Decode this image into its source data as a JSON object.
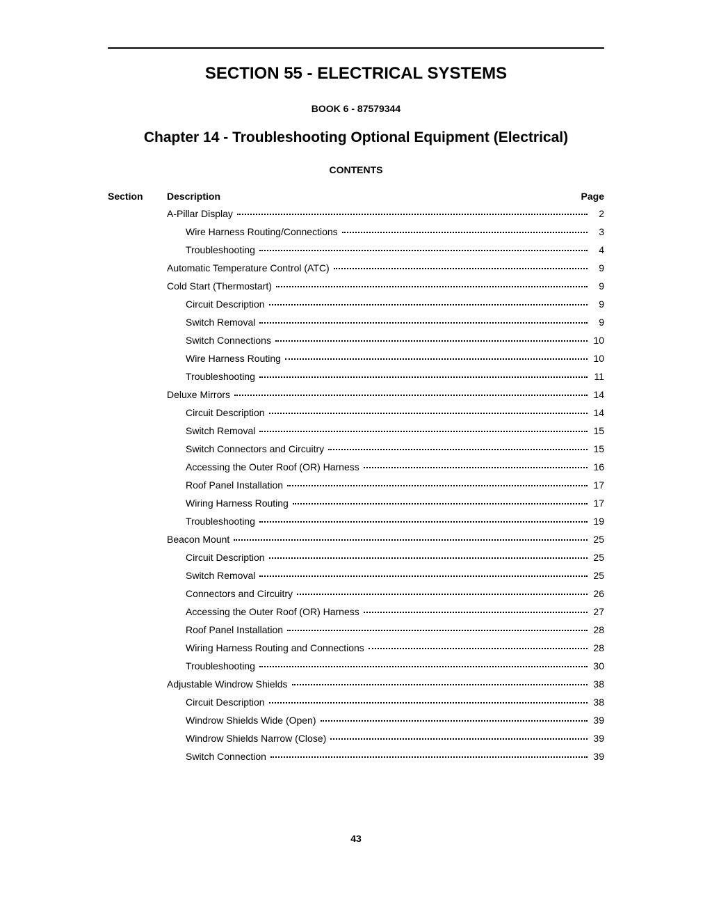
{
  "section_title": "SECTION 55 - ELECTRICAL SYSTEMS",
  "book_line": "BOOK 6 - 87579344",
  "chapter_title": "Chapter 14 - Troubleshooting Optional Equipment (Electrical)",
  "contents_label": "CONTENTS",
  "columns": {
    "section": "Section",
    "description": "Description",
    "page": "Page"
  },
  "toc": [
    {
      "label": "A-Pillar Display",
      "page": "2",
      "indent": 0
    },
    {
      "label": "Wire Harness Routing/Connections",
      "page": "3",
      "indent": 1
    },
    {
      "label": "Troubleshooting",
      "page": "4",
      "indent": 1
    },
    {
      "label": "Automatic Temperature Control (ATC)",
      "page": "9",
      "indent": 0
    },
    {
      "label": "Cold Start (Thermostart)",
      "page": "9",
      "indent": 0
    },
    {
      "label": "Circuit Description",
      "page": "9",
      "indent": 1
    },
    {
      "label": "Switch Removal",
      "page": "9",
      "indent": 1
    },
    {
      "label": "Switch Connections",
      "page": "10",
      "indent": 1
    },
    {
      "label": "Wire Harness Routing",
      "page": "10",
      "indent": 1
    },
    {
      "label": "Troubleshooting",
      "page": "11",
      "indent": 1
    },
    {
      "label": "Deluxe Mirrors",
      "page": "14",
      "indent": 0
    },
    {
      "label": "Circuit Description",
      "page": "14",
      "indent": 1
    },
    {
      "label": "Switch Removal",
      "page": "15",
      "indent": 1
    },
    {
      "label": "Switch Connectors and Circuitry",
      "page": "15",
      "indent": 1
    },
    {
      "label": "Accessing the Outer Roof (OR) Harness",
      "page": "16",
      "indent": 1
    },
    {
      "label": "Roof Panel Installation",
      "page": "17",
      "indent": 1
    },
    {
      "label": "Wiring Harness Routing",
      "page": "17",
      "indent": 1
    },
    {
      "label": "Troubleshooting",
      "page": "19",
      "indent": 1
    },
    {
      "label": "Beacon Mount",
      "page": "25",
      "indent": 0
    },
    {
      "label": "Circuit Description",
      "page": "25",
      "indent": 1
    },
    {
      "label": "Switch Removal",
      "page": "25",
      "indent": 1
    },
    {
      "label": "Connectors and Circuitry",
      "page": "26",
      "indent": 1
    },
    {
      "label": "Accessing the Outer Roof (OR) Harness",
      "page": "27",
      "indent": 1
    },
    {
      "label": "Roof Panel Installation",
      "page": "28",
      "indent": 1
    },
    {
      "label": "Wiring Harness Routing and Connections",
      "page": "28",
      "indent": 1
    },
    {
      "label": "Troubleshooting",
      "page": "30",
      "indent": 1
    },
    {
      "label": "Adjustable Windrow Shields",
      "page": "38",
      "indent": 0
    },
    {
      "label": "Circuit Description",
      "page": "38",
      "indent": 1
    },
    {
      "label": "Windrow Shields Wide (Open)",
      "page": "39",
      "indent": 1
    },
    {
      "label": "Windrow Shields Narrow (Close)",
      "page": "39",
      "indent": 1
    },
    {
      "label": "Switch Connection",
      "page": "39",
      "indent": 1
    }
  ],
  "footer_page": "43"
}
